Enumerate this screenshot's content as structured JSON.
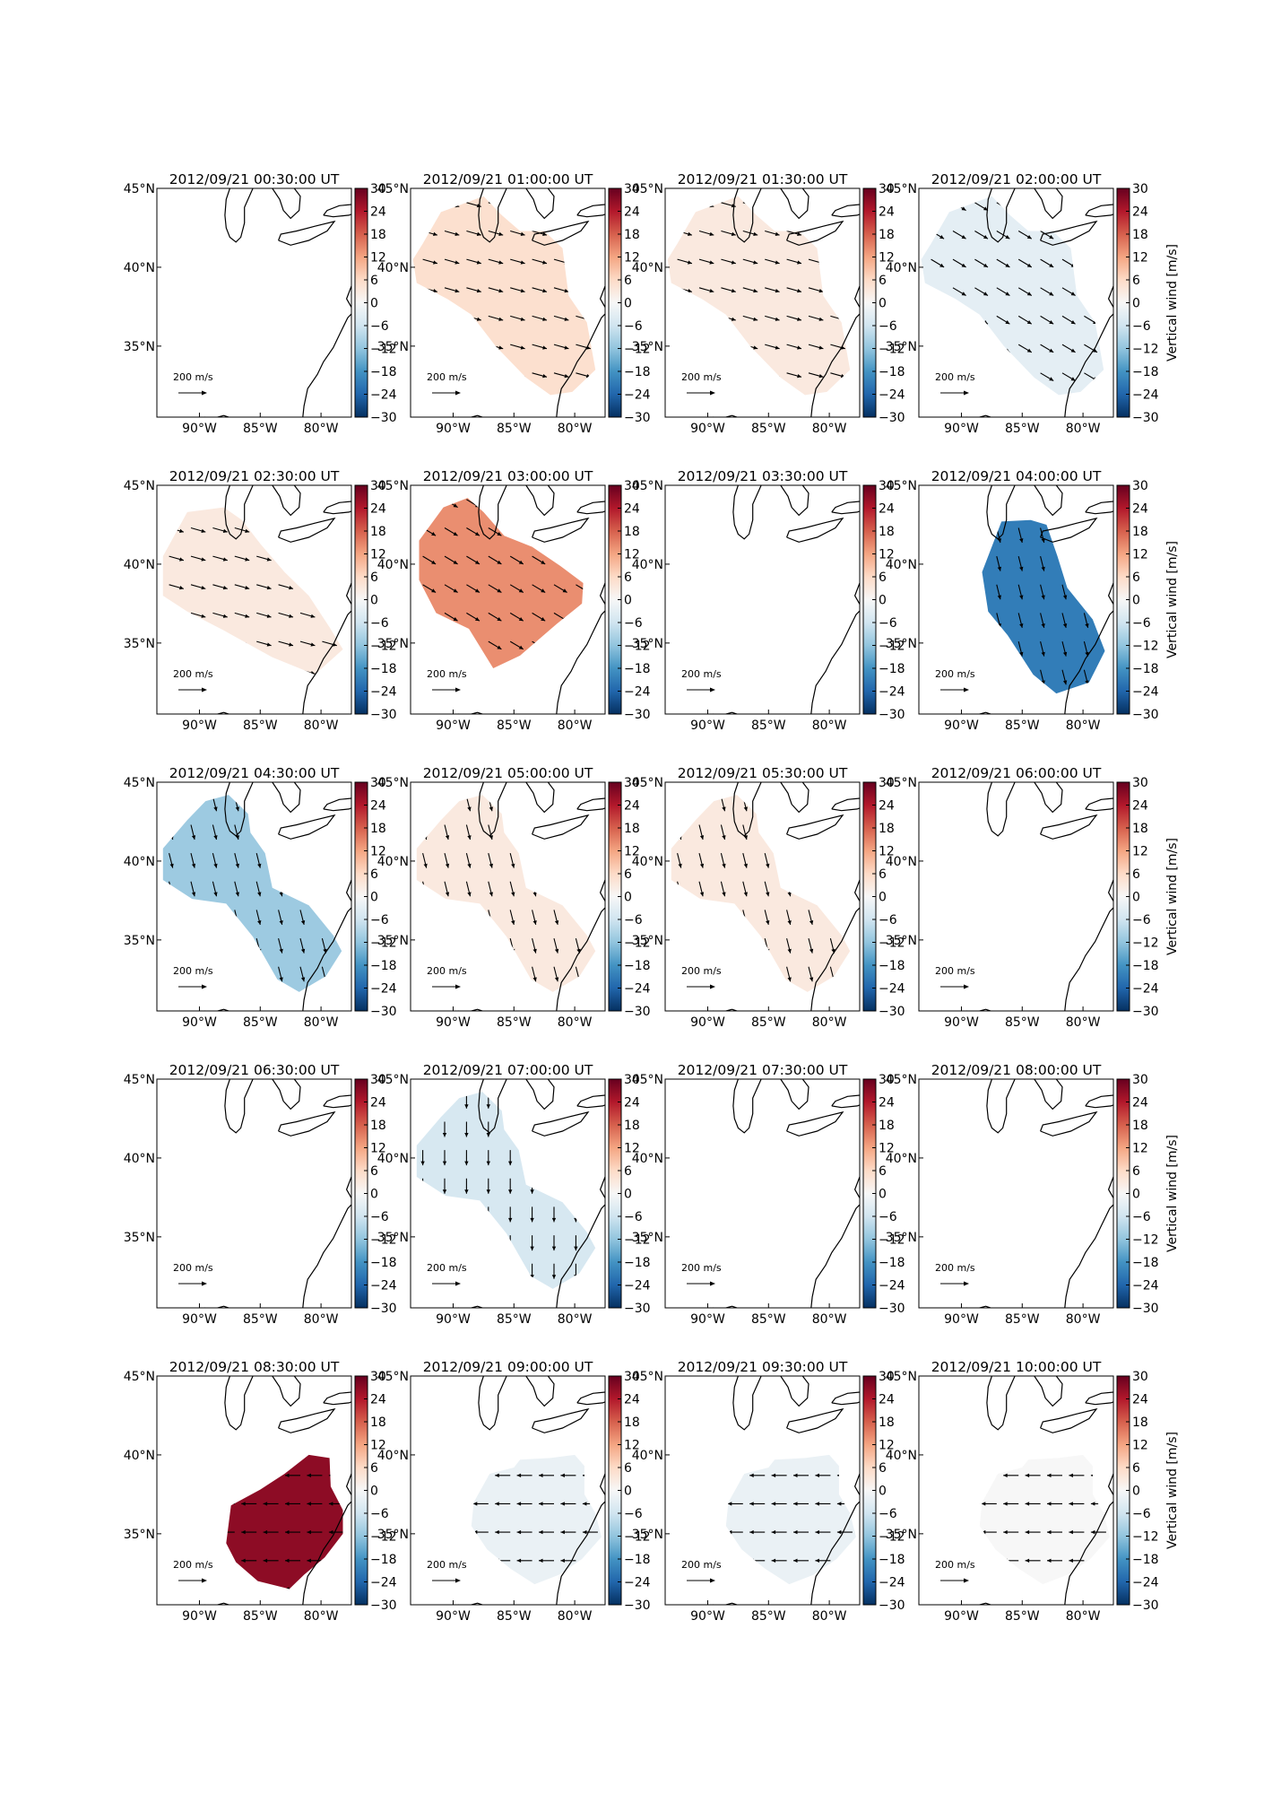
{
  "figure": {
    "colorbar_label": "Vertical wind [m/s]",
    "colorbar_ticks": [
      30,
      24,
      18,
      12,
      6,
      0,
      -6,
      -12,
      -18,
      -24,
      -30
    ],
    "colorbar_tick_labels": [
      "30",
      "24",
      "18",
      "12",
      "6",
      "0",
      "−6",
      "−12",
      "−18",
      "−24",
      "−30"
    ],
    "lat_tick_labels": [
      "45°N",
      "40°N",
      "35°N"
    ],
    "lon_tick_labels": [
      "90°W",
      "85°W",
      "80°W"
    ],
    "scale_key": "200 m/s"
  },
  "chart_data": {
    "type": "heatmap",
    "description_of_axes": {
      "x": "Longitude (°W)",
      "y": "Latitude (°N)"
    },
    "xlim": [
      -93.5,
      -77.5
    ],
    "ylim": [
      30.5,
      45
    ],
    "xticks": [
      -90,
      -85,
      -80
    ],
    "yticks": [
      45,
      40,
      35
    ],
    "colorbar_range": [
      -30,
      30
    ],
    "colormap": "RdBu_r",
    "panels": [
      {
        "title": "2012/09/21 00:30:00 UT",
        "value": null,
        "region": "none",
        "arrow_dir": "none"
      },
      {
        "title": "2012/09/21 01:00:00 UT",
        "value": 5,
        "region": "A",
        "arrow_dir": "E-SE"
      },
      {
        "title": "2012/09/21 01:30:00 UT",
        "value": 3,
        "region": "A",
        "arrow_dir": "E-SE"
      },
      {
        "title": "2012/09/21 02:00:00 UT",
        "value": -3,
        "region": "A",
        "arrow_dir": "SE"
      },
      {
        "title": "2012/09/21 02:30:00 UT",
        "value": 3,
        "region": "B",
        "arrow_dir": "E-SE"
      },
      {
        "title": "2012/09/21 03:00:00 UT",
        "value": 14,
        "region": "C",
        "arrow_dir": "SE"
      },
      {
        "title": "2012/09/21 03:30:00 UT",
        "value": null,
        "region": "none",
        "arrow_dir": "none"
      },
      {
        "title": "2012/09/21 04:00:00 UT",
        "value": -21,
        "region": "D",
        "arrow_dir": "SSE"
      },
      {
        "title": "2012/09/21 04:30:00 UT",
        "value": -11,
        "region": "E",
        "arrow_dir": "SSE"
      },
      {
        "title": "2012/09/21 05:00:00 UT",
        "value": 3,
        "region": "E",
        "arrow_dir": "SSE"
      },
      {
        "title": "2012/09/21 05:30:00 UT",
        "value": 3,
        "region": "E",
        "arrow_dir": "SSE"
      },
      {
        "title": "2012/09/21 06:00:00 UT",
        "value": null,
        "region": "none",
        "arrow_dir": "none"
      },
      {
        "title": "2012/09/21 06:30:00 UT",
        "value": null,
        "region": "none",
        "arrow_dir": "none"
      },
      {
        "title": "2012/09/21 07:00:00 UT",
        "value": -5,
        "region": "E",
        "arrow_dir": "S"
      },
      {
        "title": "2012/09/21 07:30:00 UT",
        "value": null,
        "region": "none",
        "arrow_dir": "none"
      },
      {
        "title": "2012/09/21 08:00:00 UT",
        "value": null,
        "region": "none",
        "arrow_dir": "none"
      },
      {
        "title": "2012/09/21 08:30:00 UT",
        "value": 27,
        "region": "F",
        "arrow_dir": "W"
      },
      {
        "title": "2012/09/21 09:00:00 UT",
        "value": -2,
        "region": "G",
        "arrow_dir": "W"
      },
      {
        "title": "2012/09/21 09:30:00 UT",
        "value": -2,
        "region": "G",
        "arrow_dir": "W"
      },
      {
        "title": "2012/09/21 10:00:00 UT",
        "value": 0,
        "region": "G",
        "arrow_dir": "W"
      }
    ]
  }
}
